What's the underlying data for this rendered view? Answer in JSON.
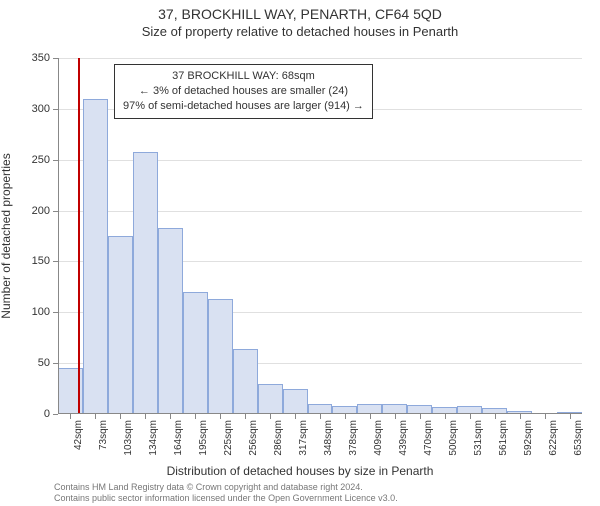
{
  "title": "37, BROCKHILL WAY, PENARTH, CF64 5QD",
  "subtitle": "Size of property relative to detached houses in Penarth",
  "y_axis_label": "Number of detached properties",
  "x_axis_label": "Distribution of detached houses by size in Penarth",
  "annotation": {
    "line1": "37 BROCKHILL WAY: 68sqm",
    "line2": "← 3% of detached houses are smaller (24)",
    "line3": "97% of semi-detached houses are larger (914) →"
  },
  "footnote_line1": "Contains HM Land Registry data © Crown copyright and database right 2024.",
  "footnote_line2": "Contains public sector information licensed under the Open Government Licence v3.0.",
  "chart": {
    "type": "histogram",
    "ylim": [
      0,
      350
    ],
    "ytick_step": 50,
    "bar_fill": "#d9e1f2",
    "bar_border": "#8ea9db",
    "grid_color": "#e0e0e0",
    "axis_color": "#888888",
    "marker_color": "#c00000",
    "marker_x_value": 68,
    "background_color": "#ffffff",
    "text_color": "#333333",
    "tick_fontsize": 11,
    "xtick_fontsize": 10,
    "label_fontsize": 12,
    "title_fontsize": 14,
    "x_start": 42,
    "x_step": 30.5,
    "x_unit": "sqm",
    "x_labels": [
      "42sqm",
      "73sqm",
      "103sqm",
      "134sqm",
      "164sqm",
      "195sqm",
      "225sqm",
      "256sqm",
      "286sqm",
      "317sqm",
      "348sqm",
      "378sqm",
      "409sqm",
      "439sqm",
      "470sqm",
      "500sqm",
      "531sqm",
      "561sqm",
      "592sqm",
      "622sqm",
      "653sqm"
    ],
    "values": [
      45,
      310,
      175,
      258,
      183,
      120,
      113,
      64,
      30,
      25,
      10,
      8,
      10,
      10,
      9,
      7,
      8,
      6,
      3,
      0,
      2
    ]
  }
}
